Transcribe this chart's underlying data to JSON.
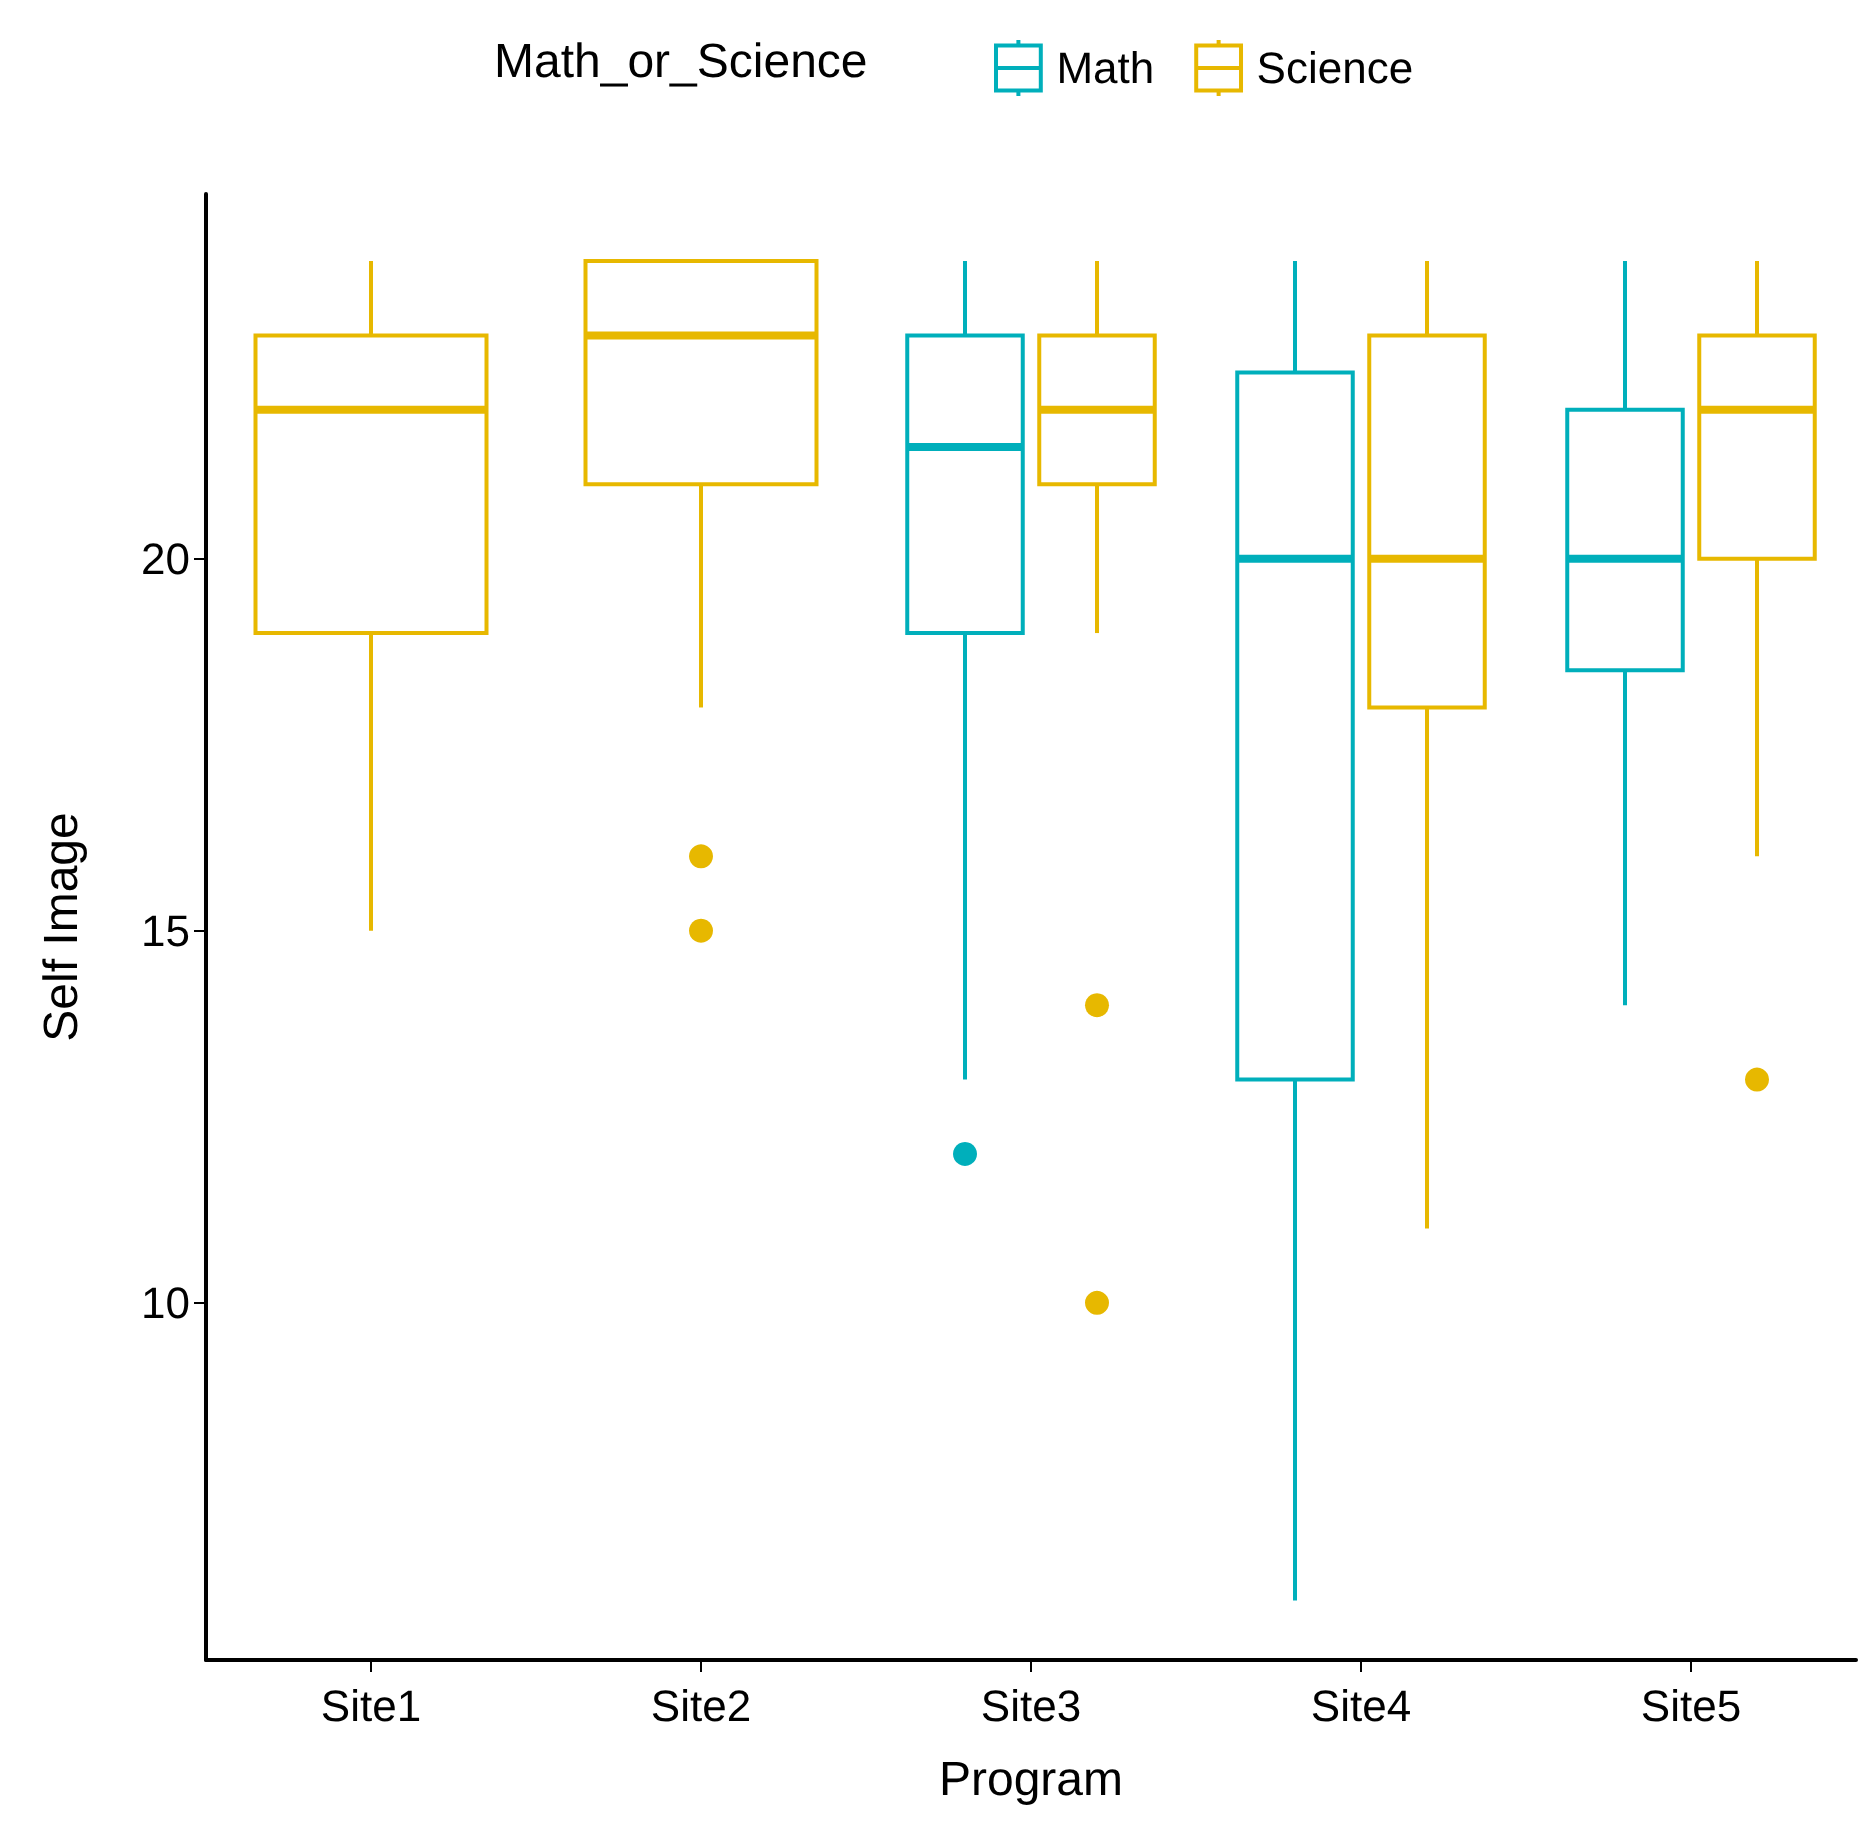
{
  "chart_data": {
    "type": "box",
    "xlabel": "Program",
    "ylabel": "Self Image",
    "legend_title": "Math_or_Science",
    "legend": "top",
    "grid": false,
    "categories": [
      "Site1",
      "Site2",
      "Site3",
      "Site4",
      "Site5"
    ],
    "ylim": [
      5.2,
      24.9
    ],
    "yticks": [
      10,
      15,
      20
    ],
    "series": [
      {
        "name": "Math",
        "color": "#00afbb",
        "boxes": [
          null,
          null,
          {
            "low": 13,
            "q1": 19,
            "median": 21.5,
            "q3": 23,
            "high": 24,
            "outliers": [
              12
            ]
          },
          {
            "low": 6,
            "q1": 13,
            "median": 20,
            "q3": 22.5,
            "high": 24
          },
          {
            "low": 14,
            "q1": 18.5,
            "median": 20,
            "q3": 22,
            "high": 24
          }
        ]
      },
      {
        "name": "Science",
        "color": "#e7b800",
        "boxes": [
          {
            "low": 15,
            "q1": 19,
            "median": 22,
            "q3": 23,
            "high": 24
          },
          {
            "low": 18,
            "q1": 21,
            "median": 23,
            "q3": 24,
            "high": 24,
            "outliers": [
              16,
              15
            ]
          },
          {
            "low": 19,
            "q1": 21,
            "median": 22,
            "q3": 23,
            "high": 24,
            "outliers": [
              14,
              10
            ]
          },
          {
            "low": 11,
            "q1": 18,
            "median": 20,
            "q3": 23,
            "high": 24
          },
          {
            "low": 16,
            "q1": 20,
            "median": 22,
            "q3": 23,
            "high": 24,
            "outliers": [
              13
            ]
          }
        ]
      }
    ]
  }
}
